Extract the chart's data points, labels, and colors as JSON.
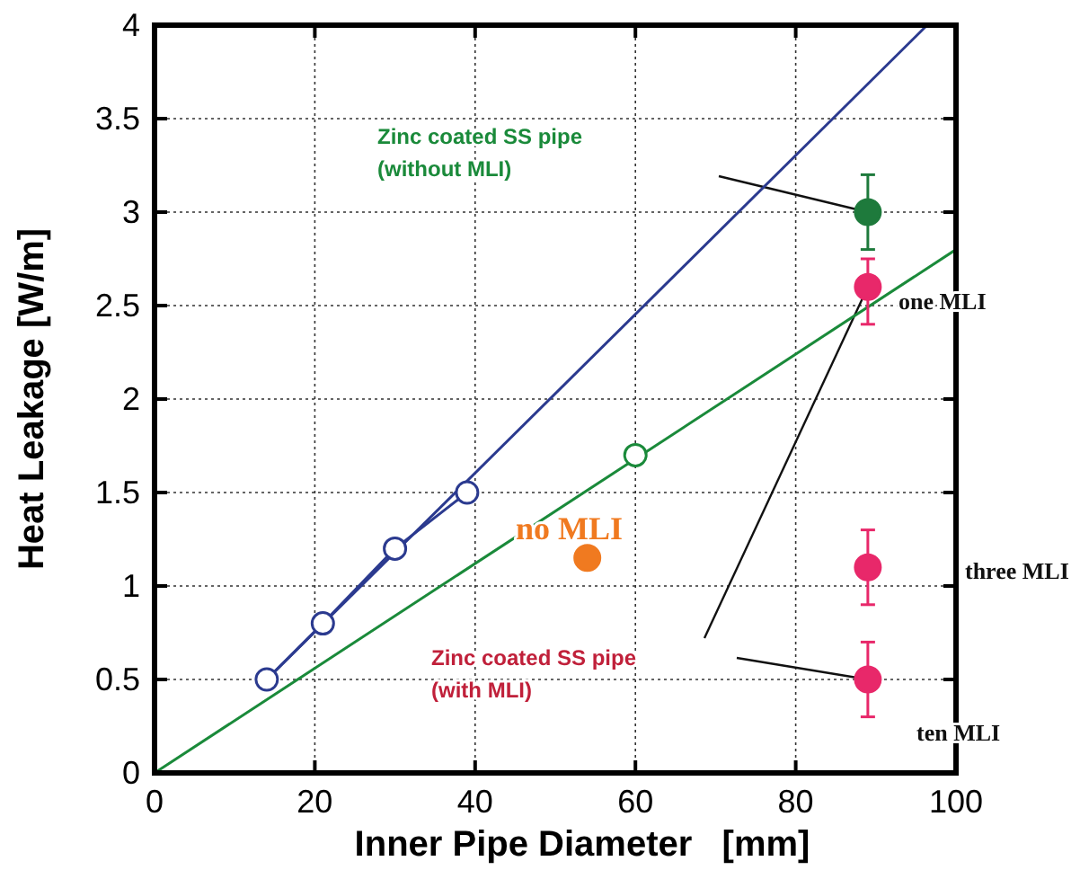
{
  "chart_data": {
    "type": "scatter",
    "xlabel": "Inner Pipe Diameter   [mm]",
    "ylabel": "Heat Leakage [W/m]",
    "xlim": [
      0,
      100
    ],
    "xticks": [
      0,
      20,
      40,
      60,
      80,
      100
    ],
    "ylim": [
      0,
      4
    ],
    "yticks": [
      0,
      0.5,
      1,
      1.5,
      2,
      2.5,
      3,
      3.5,
      4
    ],
    "grid": true,
    "series": [
      {
        "type": "line",
        "color": "#2b3a8f",
        "x": [
          14,
          96.4
        ],
        "values": [
          0.5,
          4
        ]
      },
      {
        "type": "line",
        "color": "#1a8a3a",
        "x": [
          0,
          100
        ],
        "values": [
          0,
          2.8
        ]
      },
      {
        "type": "line",
        "color": "#2b3a8f",
        "x": [
          14,
          21,
          30,
          39
        ],
        "values": [
          0.5,
          0.8,
          1.2,
          1.5
        ],
        "marker": "circle"
      },
      {
        "type": "line",
        "color": "#1a8a3a",
        "x": [
          60
        ],
        "values": [
          1.7
        ],
        "marker": "circle"
      },
      {
        "type": "scatter",
        "color": "#1e7a3c",
        "x": [
          89
        ],
        "values": [
          3.0
        ],
        "errors": [
          0.2
        ],
        "marker": "circle"
      },
      {
        "type": "scatter",
        "color": "#e8286a",
        "x": [
          89,
          89,
          89
        ],
        "values": [
          2.6,
          1.1,
          0.5
        ],
        "errors": [
          [
            2.4,
            2.75
          ],
          0.2,
          0.2
        ],
        "marker": "circle"
      },
      {
        "type": "scatter",
        "color": "#f07a20",
        "x": [
          54
        ],
        "values": [
          1.15
        ],
        "marker": "circle"
      }
    ],
    "annotations": [
      "Zinc coated SS pipe\n(without MLI)",
      "Zinc coated SS pipe\n(with MLI)",
      "one MLI",
      "three MLI",
      "ten MLI",
      "no MLI"
    ]
  }
}
